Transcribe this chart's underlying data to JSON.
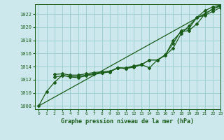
{
  "title": "Graphe pression niveau de la mer (hPa)",
  "bg_color": "#cce8ec",
  "grid_color": "#99cccc",
  "line_color": "#1a5c1a",
  "xlim": [
    -0.5,
    23
  ],
  "ylim": [
    1007.5,
    1023.5
  ],
  "yticks": [
    1008,
    1010,
    1012,
    1014,
    1016,
    1018,
    1020,
    1022
  ],
  "xticks": [
    0,
    1,
    2,
    3,
    4,
    5,
    6,
    7,
    8,
    9,
    10,
    11,
    12,
    13,
    14,
    15,
    16,
    17,
    18,
    19,
    20,
    21,
    22,
    23
  ],
  "series": [
    {
      "x": [
        0,
        1,
        2,
        3,
        4,
        5,
        6,
        7,
        8,
        9,
        10,
        11,
        12,
        13,
        14,
        15,
        16,
        17,
        18,
        19,
        20,
        21,
        22,
        23
      ],
      "y": [
        1008.0,
        1010.2,
        1011.6,
        1012.7,
        1012.4,
        1012.3,
        1012.6,
        1012.8,
        1013.0,
        1013.2,
        1013.8,
        1013.7,
        1013.9,
        1014.3,
        1015.0,
        1015.0,
        1015.7,
        1016.8,
        1019.0,
        1020.2,
        1021.5,
        1021.8,
        1022.4,
        1023.0
      ],
      "marker": "D",
      "markersize": 2.0,
      "linewidth": 0.9,
      "has_marker": true
    },
    {
      "x": [
        2,
        3,
        4,
        5,
        6,
        7,
        8,
        9,
        10,
        11,
        12,
        13,
        14,
        15,
        16,
        17,
        18,
        19,
        20,
        21,
        22,
        23
      ],
      "y": [
        1012.8,
        1012.9,
        1012.7,
        1012.7,
        1012.9,
        1013.1,
        1013.2,
        1013.3,
        1013.8,
        1013.8,
        1014.1,
        1014.3,
        1013.8,
        1015.0,
        1015.7,
        1018.0,
        1019.3,
        1019.5,
        1020.5,
        1022.0,
        1022.8,
        1023.2
      ],
      "marker": "D",
      "markersize": 2.0,
      "linewidth": 0.9,
      "has_marker": true
    },
    {
      "x": [
        2,
        3,
        4,
        5,
        6,
        7,
        8,
        9,
        10,
        11,
        12,
        13,
        14,
        15,
        16,
        17,
        18,
        19,
        20,
        21,
        22,
        23
      ],
      "y": [
        1012.4,
        1012.6,
        1012.5,
        1012.5,
        1012.7,
        1012.9,
        1013.1,
        1013.2,
        1013.8,
        1013.7,
        1014.0,
        1014.3,
        1015.0,
        1015.0,
        1015.8,
        1017.5,
        1019.5,
        1019.8,
        1021.5,
        1022.5,
        1023.1,
        1023.4
      ],
      "marker": "D",
      "markersize": 2.0,
      "linewidth": 0.9,
      "has_marker": true
    },
    {
      "x": [
        0,
        23
      ],
      "y": [
        1008.0,
        1023.4
      ],
      "marker": null,
      "markersize": 0,
      "linewidth": 0.9,
      "has_marker": false
    }
  ]
}
